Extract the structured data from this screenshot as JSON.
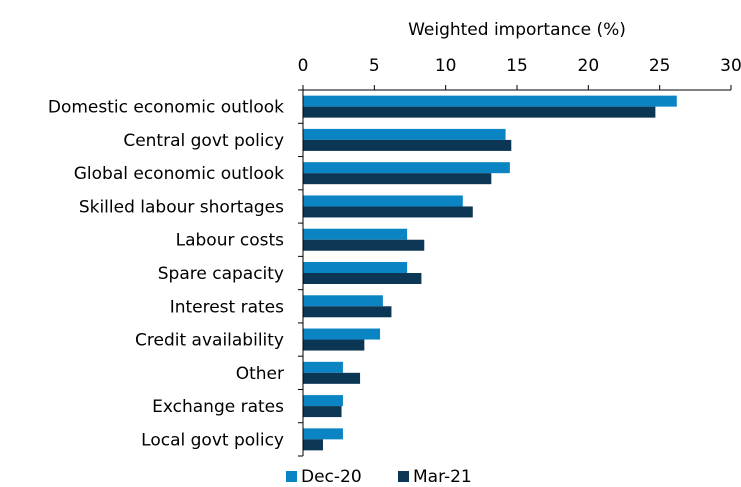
{
  "chart_data": {
    "type": "bar",
    "orientation": "horizontal",
    "xlabel": "Weighted importance (%)",
    "xlim": [
      0,
      30
    ],
    "xticks": [
      0,
      5,
      10,
      15,
      20,
      25,
      30
    ],
    "categories": [
      "Domestic economic outlook",
      "Central govt policy",
      "Global economic outlook",
      "Skilled labour shortages",
      "Labour costs",
      "Spare capacity",
      "Interest rates",
      "Credit availability",
      "Other",
      "Exchange rates",
      "Local govt policy"
    ],
    "series": [
      {
        "name": "Dec-20",
        "color": "#0b84c4",
        "values": [
          26.2,
          14.2,
          14.5,
          11.2,
          7.3,
          7.3,
          5.6,
          5.4,
          2.8,
          2.8,
          2.8
        ]
      },
      {
        "name": "Mar-21",
        "color": "#0b3654",
        "values": [
          24.7,
          14.6,
          13.2,
          11.9,
          8.5,
          8.3,
          6.2,
          4.3,
          4.0,
          2.7,
          1.4
        ]
      }
    ],
    "grid": false,
    "legend_position": "bottom"
  }
}
